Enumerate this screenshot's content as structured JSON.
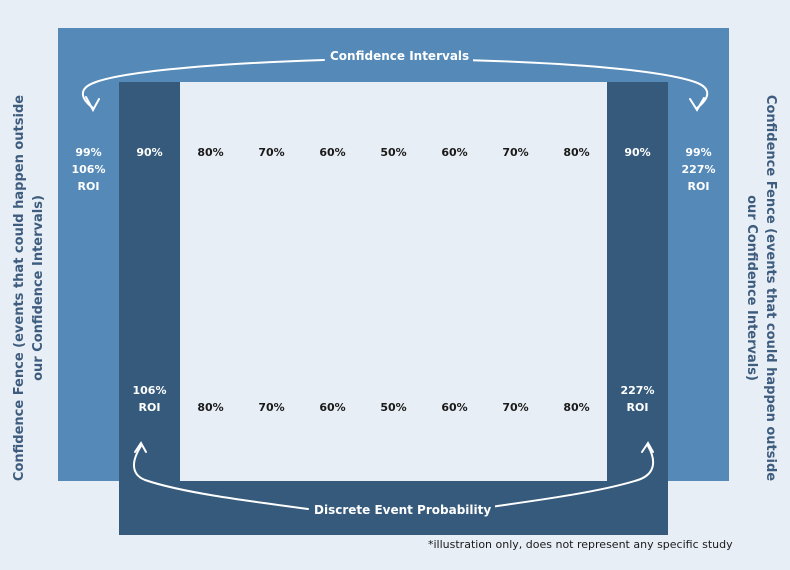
{
  "diagram": {
    "top_label": "Confidence Intervals",
    "bottom_label": "Discrete Event Probability",
    "side_label_left": "Confidence Fence (events that could happen outside our Confidence Intervals)",
    "side_label_right": "Confidence Fence (events that could happen outside our Confidence Intervals)",
    "footnote": "*illustration only, does not represent any specific study",
    "top_row": [
      {
        "lines": [
          "99%",
          "106%",
          "ROI"
        ],
        "zone": "fence"
      },
      {
        "lines": [
          "90%"
        ],
        "zone": "dark"
      },
      {
        "lines": [
          "80%"
        ],
        "zone": "inner"
      },
      {
        "lines": [
          "70%"
        ],
        "zone": "inner"
      },
      {
        "lines": [
          "60%"
        ],
        "zone": "inner"
      },
      {
        "lines": [
          "50%"
        ],
        "zone": "inner"
      },
      {
        "lines": [
          "60%"
        ],
        "zone": "inner"
      },
      {
        "lines": [
          "70%"
        ],
        "zone": "inner"
      },
      {
        "lines": [
          "80%"
        ],
        "zone": "inner"
      },
      {
        "lines": [
          "90%"
        ],
        "zone": "dark"
      },
      {
        "lines": [
          "99%",
          "227%",
          "ROI"
        ],
        "zone": "fence"
      }
    ],
    "bottom_row": [
      {
        "lines": [
          "106%",
          "ROI"
        ],
        "zone": "dark"
      },
      {
        "lines": [
          "80%"
        ],
        "zone": "inner"
      },
      {
        "lines": [
          "70%"
        ],
        "zone": "inner"
      },
      {
        "lines": [
          "60%"
        ],
        "zone": "inner"
      },
      {
        "lines": [
          "50%"
        ],
        "zone": "inner"
      },
      {
        "lines": [
          "60%"
        ],
        "zone": "inner"
      },
      {
        "lines": [
          "70%"
        ],
        "zone": "inner"
      },
      {
        "lines": [
          "80%"
        ],
        "zone": "inner"
      },
      {
        "lines": [
          "227%",
          "ROI"
        ],
        "zone": "dark"
      }
    ],
    "colors": {
      "background": "#e8eef5",
      "fence": "#5489b8",
      "dark": "#355a7b",
      "side_text": "#3d5c7e"
    }
  }
}
